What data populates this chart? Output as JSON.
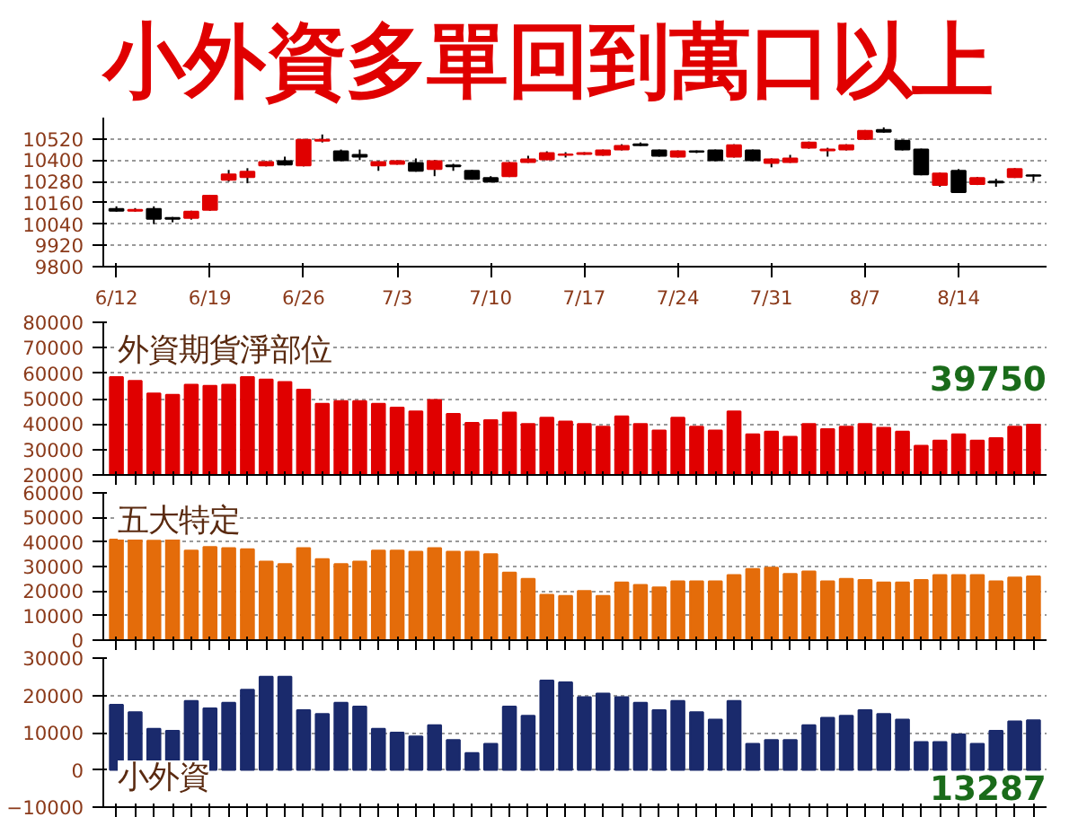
{
  "chart_data": [
    {
      "type": "candlestick",
      "title": "小外資多單回到萬口以上",
      "categories": [
        "6/12",
        null,
        null,
        null,
        null,
        "6/19",
        null,
        null,
        null,
        null,
        "6/26",
        null,
        null,
        null,
        null,
        "7/3",
        null,
        null,
        null,
        null,
        "7/10",
        null,
        null,
        null,
        null,
        "7/17",
        null,
        null,
        null,
        null,
        "7/24",
        null,
        null,
        null,
        null,
        "7/31",
        null,
        null,
        null,
        null,
        "8/7",
        null,
        null,
        null,
        null,
        "8/14",
        null,
        null,
        null,
        null
      ],
      "ohlc": [
        [
          10125,
          10140,
          10110,
          10115
        ],
        [
          10115,
          10130,
          10110,
          10120
        ],
        [
          10125,
          10140,
          10040,
          10070
        ],
        [
          10075,
          10080,
          10050,
          10070
        ],
        [
          10075,
          10115,
          10065,
          10110
        ],
        [
          10120,
          10205,
          10115,
          10200
        ],
        [
          10290,
          10345,
          10280,
          10320
        ],
        [
          10305,
          10355,
          10270,
          10335
        ],
        [
          10370,
          10395,
          10365,
          10390
        ],
        [
          10395,
          10420,
          10370,
          10375
        ],
        [
          10370,
          10520,
          10365,
          10515
        ],
        [
          10510,
          10545,
          10500,
          10515
        ],
        [
          10450,
          10460,
          10395,
          10400
        ],
        [
          10430,
          10460,
          10400,
          10420
        ],
        [
          10370,
          10395,
          10340,
          10390
        ],
        [
          10380,
          10400,
          10375,
          10395
        ],
        [
          10385,
          10410,
          10335,
          10340
        ],
        [
          10350,
          10400,
          10310,
          10395
        ],
        [
          10370,
          10380,
          10340,
          10365
        ],
        [
          10340,
          10345,
          10290,
          10295
        ],
        [
          10300,
          10310,
          10275,
          10280
        ],
        [
          10310,
          10390,
          10305,
          10385
        ],
        [
          10390,
          10425,
          10385,
          10405
        ],
        [
          10405,
          10450,
          10400,
          10440
        ],
        [
          10430,
          10445,
          10415,
          10432
        ],
        [
          10435,
          10445,
          10430,
          10440
        ],
        [
          10430,
          10460,
          10425,
          10455
        ],
        [
          10460,
          10490,
          10455,
          10480
        ],
        [
          10490,
          10500,
          10480,
          10485
        ],
        [
          10455,
          10460,
          10420,
          10425
        ],
        [
          10420,
          10455,
          10415,
          10450
        ],
        [
          10450,
          10455,
          10440,
          10448
        ],
        [
          10455,
          10460,
          10395,
          10400
        ],
        [
          10420,
          10490,
          10415,
          10485
        ],
        [
          10455,
          10460,
          10395,
          10400
        ],
        [
          10385,
          10410,
          10360,
          10405
        ],
        [
          10390,
          10430,
          10385,
          10410
        ],
        [
          10470,
          10505,
          10465,
          10500
        ],
        [
          10455,
          10470,
          10420,
          10460
        ],
        [
          10460,
          10490,
          10455,
          10485
        ],
        [
          10520,
          10570,
          10515,
          10565
        ],
        [
          10570,
          10585,
          10555,
          10560
        ],
        [
          10510,
          10515,
          10455,
          10460
        ],
        [
          10460,
          10465,
          10315,
          10320
        ],
        [
          10260,
          10330,
          10250,
          10325
        ],
        [
          10340,
          10350,
          10215,
          10220
        ],
        [
          10265,
          10305,
          10260,
          10300
        ],
        [
          10280,
          10295,
          10250,
          10275
        ],
        [
          10305,
          10355,
          10300,
          10350
        ],
        [
          10315,
          10320,
          10280,
          10312
        ]
      ],
      "ylim": [
        9800,
        10640
      ],
      "yticks": [
        9800,
        9920,
        10040,
        10160,
        10280,
        10400,
        10520
      ],
      "grid": "y"
    },
    {
      "type": "bar",
      "title": "外資期貨淨部位",
      "annotations": [
        "39750"
      ],
      "categories": [
        null,
        null,
        null,
        null,
        null,
        null,
        null,
        null,
        null,
        null,
        null,
        null,
        null,
        null,
        null,
        null,
        null,
        null,
        null,
        null,
        null,
        null,
        null,
        null,
        null,
        null,
        null,
        null,
        null,
        null,
        null,
        null,
        null,
        null,
        null,
        null,
        null,
        null,
        null,
        null,
        null,
        null,
        null,
        null,
        null,
        null,
        null,
        null,
        null,
        null
      ],
      "color": "#e00000",
      "values": [
        58500,
        57000,
        52000,
        51500,
        55500,
        55000,
        55500,
        58500,
        57500,
        56500,
        53500,
        48000,
        49000,
        49000,
        48000,
        46500,
        45000,
        49500,
        44000,
        40500,
        41500,
        44500,
        40000,
        42500,
        41000,
        40000,
        39000,
        43000,
        40000,
        37500,
        42500,
        39000,
        37500,
        45000,
        36000,
        37000,
        35000,
        40000,
        38000,
        39000,
        40000,
        38500,
        37000,
        31500,
        33500,
        36000,
        33500,
        34500,
        39000,
        39750
      ],
      "ylim": [
        20000,
        80000
      ],
      "yticks": [
        20000,
        30000,
        40000,
        50000,
        60000,
        70000,
        80000
      ],
      "grid": "y",
      "tick_labels": "y"
    },
    {
      "type": "bar",
      "title": "五大特定",
      "categories": [
        null,
        null,
        null,
        null,
        null,
        null,
        null,
        null,
        null,
        null,
        null,
        null,
        null,
        null,
        null,
        null,
        null,
        null,
        null,
        null,
        null,
        null,
        null,
        null,
        null,
        null,
        null,
        null,
        null,
        null,
        null,
        null,
        null,
        null,
        null,
        null,
        null,
        null,
        null,
        null,
        null,
        null,
        null,
        null,
        null,
        null,
        null,
        null,
        null,
        null
      ],
      "color": "#e46c0a",
      "values": [
        41000,
        41500,
        40500,
        41000,
        36500,
        38000,
        37500,
        37000,
        32000,
        31000,
        37500,
        33000,
        31000,
        32000,
        36500,
        36500,
        36000,
        37500,
        36000,
        36000,
        35000,
        27500,
        25000,
        18500,
        18000,
        20000,
        18000,
        23500,
        22500,
        21500,
        24000,
        24000,
        24000,
        26500,
        29000,
        29500,
        27000,
        28000,
        24000,
        25000,
        24500,
        23500,
        23500,
        24500,
        26500,
        26500,
        26500,
        24000,
        25500,
        26000
      ],
      "ylim": [
        0,
        60000
      ],
      "yticks": [
        0,
        10000,
        20000,
        30000,
        40000,
        50000,
        60000
      ],
      "grid": "y",
      "tick_labels": "y"
    },
    {
      "type": "bar",
      "title": "小外資",
      "annotations": [
        "13287"
      ],
      "categories": [
        null,
        null,
        null,
        null,
        null,
        null,
        null,
        null,
        null,
        null,
        null,
        null,
        null,
        null,
        null,
        null,
        null,
        null,
        null,
        null,
        null,
        null,
        null,
        null,
        null,
        null,
        null,
        null,
        null,
        null,
        null,
        null,
        null,
        null,
        null,
        null,
        null,
        null,
        null,
        null,
        null,
        null,
        null,
        null,
        null,
        null,
        null,
        null,
        null,
        null
      ],
      "color": "#1a2a6c",
      "values": [
        17500,
        15500,
        11000,
        10500,
        18500,
        16500,
        18000,
        21500,
        25000,
        25000,
        16000,
        15000,
        18000,
        17000,
        11000,
        10000,
        9000,
        12000,
        8000,
        4500,
        7000,
        17000,
        14500,
        24000,
        23500,
        19500,
        20500,
        19500,
        18000,
        16000,
        18500,
        15500,
        13500,
        18500,
        7000,
        8000,
        8000,
        12000,
        14000,
        14500,
        16000,
        15000,
        13500,
        7500,
        7500,
        9500,
        7000,
        10500,
        13000,
        13287
      ],
      "ylim": [
        -10000,
        30000
      ],
      "yticks": [
        -10000,
        0,
        10000,
        20000,
        30000
      ],
      "grid": "y",
      "tick_labels": "y"
    }
  ]
}
